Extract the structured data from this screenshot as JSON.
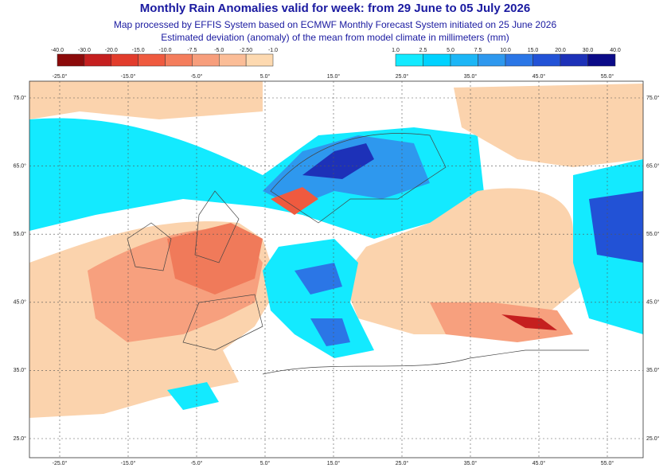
{
  "header": {
    "title": "Monthly Rain Anomalies valid for week: from 29 June to 05 July 2026",
    "subtitle": "Map processed by EFFIS System based on ECMWF Monthly Forecast System initiated on 25 June 2026",
    "description": "Estimated deviation (anomaly) of the mean from model climate in millimeters (mm)"
  },
  "legend": {
    "negative": {
      "labels": [
        "-40.0",
        "-30.0",
        "-20.0",
        "-15.0",
        "-10.0",
        "-7.5",
        "-5.0",
        "-2.50",
        "-1.0"
      ],
      "colors": [
        "#8b0a0a",
        "#c51f1f",
        "#e23c2c",
        "#ef5a3f",
        "#f47d5c",
        "#f79e7c",
        "#fbbd97",
        "#fdd9b0"
      ]
    },
    "positive": {
      "labels": [
        "1.0",
        "2.5",
        "5.0",
        "7.5",
        "10.0",
        "15.0",
        "20.0",
        "30.0",
        "40.0"
      ],
      "colors": [
        "#13eaff",
        "#00d2ff",
        "#1cb6f6",
        "#2e98ee",
        "#2b76e6",
        "#2252d6",
        "#1d31b8",
        "#0b0b88"
      ]
    }
  },
  "map": {
    "lon_labels": [
      "-25.0°",
      "-15.0°",
      "-5.0°",
      "5.0°",
      "15.0°",
      "25.0°",
      "35.0°",
      "45.0°",
      "55.0°"
    ],
    "lat_labels": [
      "75.0°",
      "65.0°",
      "55.0°",
      "45.0°",
      "35.0°",
      "25.0°"
    ]
  }
}
